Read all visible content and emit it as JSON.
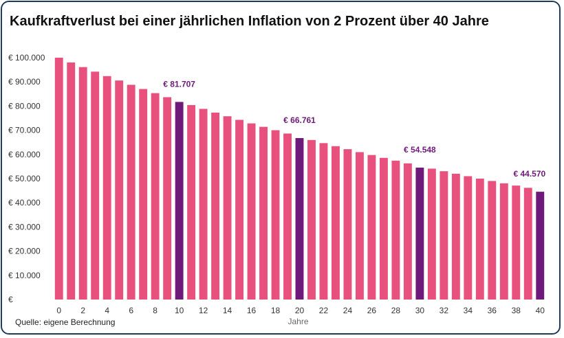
{
  "chart_data": {
    "type": "bar",
    "title": "Kaufkraftverlust bei einer jährlichen Inflation von 2 Prozent über 40 Jahre",
    "xlabel": "Jahre",
    "ylabel": "",
    "source": "Quelle: eigene Berechnung",
    "categories": [
      0,
      1,
      2,
      3,
      4,
      5,
      6,
      7,
      8,
      9,
      10,
      11,
      12,
      13,
      14,
      15,
      16,
      17,
      18,
      19,
      20,
      21,
      22,
      23,
      24,
      25,
      26,
      27,
      28,
      29,
      30,
      31,
      32,
      33,
      34,
      35,
      36,
      37,
      38,
      39,
      40
    ],
    "values": [
      100000,
      98039,
      96117,
      94232,
      92385,
      90573,
      88797,
      87056,
      85349,
      83676,
      81707,
      80426,
      78849,
      77303,
      75788,
      74301,
      72845,
      71416,
      70016,
      68643,
      66761,
      65978,
      64684,
      63416,
      62172,
      60953,
      59758,
      58586,
      57438,
      56311,
      54548,
      54125,
      53063,
      52023,
      51003,
      50003,
      49022,
      48061,
      47119,
      46195,
      44570
    ],
    "highlight_indices": [
      10,
      20,
      30,
      40
    ],
    "data_labels": {
      "10": "€ 81.707",
      "20": "€ 66.761",
      "30": "€ 54.548",
      "40": "€ 44.570"
    },
    "ylim": [
      0,
      100000
    ],
    "yticks": [
      0,
      10000,
      20000,
      30000,
      40000,
      50000,
      60000,
      70000,
      80000,
      90000,
      100000
    ],
    "ytick_labels": [
      "€",
      "€ 10.000",
      "€ 20.000",
      "€ 30.000",
      "€ 40.000",
      "€ 50.000",
      "€ 60.000",
      "€ 70.000",
      "€ 80.000",
      "€ 90.000",
      "€ 100.000"
    ],
    "xtick_labels": [
      "0",
      "2",
      "4",
      "6",
      "8",
      "10",
      "12",
      "14",
      "16",
      "18",
      "20",
      "22",
      "24",
      "26",
      "28",
      "30",
      "32",
      "34",
      "36",
      "38",
      "40"
    ],
    "xtick_values": [
      0,
      2,
      4,
      6,
      8,
      10,
      12,
      14,
      16,
      18,
      20,
      22,
      24,
      26,
      28,
      30,
      32,
      34,
      36,
      38,
      40
    ],
    "grid": false,
    "legend": "none",
    "colors": {
      "bar": "#e8517e",
      "highlight": "#6e1a7a",
      "label": "#6e1a7a"
    }
  }
}
